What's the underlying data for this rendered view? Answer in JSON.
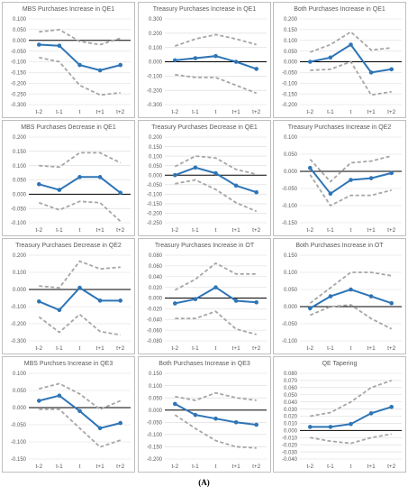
{
  "caption": "(A)",
  "colors": {
    "main": "#2E75B6",
    "band": "#A6A6A6",
    "zero": "#000000",
    "grid": "#D9D9D9",
    "frame": "#BFBFBF",
    "text": "#595959"
  },
  "chart_data": [
    {
      "type": "line",
      "title": "MBS Purchases Increase in QE1",
      "categories": [
        "t-2",
        "t-1",
        "t",
        "t+1",
        "t+2"
      ],
      "ylim": [
        -0.3,
        0.1
      ],
      "yticks": [
        "0.100",
        "0.050",
        "0.000",
        "-0.050",
        "-0.100",
        "-0.150",
        "-0.200",
        "-0.250",
        "-0.300"
      ],
      "series": [
        {
          "role": "point",
          "values": [
            -0.02,
            -0.025,
            -0.115,
            -0.14,
            -0.115
          ]
        },
        {
          "role": "upper",
          "values": [
            0.04,
            0.05,
            -0.005,
            -0.02,
            0.01
          ]
        },
        {
          "role": "lower",
          "values": [
            -0.08,
            -0.1,
            -0.21,
            -0.255,
            -0.245
          ]
        }
      ]
    },
    {
      "type": "line",
      "title": "Treasury Purchases Increase in QE1",
      "categories": [
        "t-2",
        "t-1",
        "t",
        "t+1",
        "t+2"
      ],
      "ylim": [
        -0.3,
        0.3
      ],
      "yticks": [
        "0.300",
        "0.200",
        "0.100",
        "0.000",
        "-0.100",
        "-0.200",
        "-0.300"
      ],
      "series": [
        {
          "role": "point",
          "values": [
            0.01,
            0.025,
            0.04,
            0.0,
            -0.05
          ]
        },
        {
          "role": "upper",
          "values": [
            0.11,
            0.16,
            0.19,
            0.16,
            0.12
          ]
        },
        {
          "role": "lower",
          "values": [
            -0.09,
            -0.11,
            -0.11,
            -0.165,
            -0.22
          ]
        }
      ]
    },
    {
      "type": "line",
      "title": "Both Purchases Increase in QE1",
      "categories": [
        "t-2",
        "t-1",
        "t",
        "t+1",
        "t+2"
      ],
      "ylim": [
        -0.2,
        0.2
      ],
      "yticks": [
        "0.200",
        "0.150",
        "0.100",
        "0.050",
        "0.000",
        "-0.050",
        "-0.100",
        "-0.150",
        "-0.200"
      ],
      "series": [
        {
          "role": "point",
          "values": [
            0.0,
            0.02,
            0.08,
            -0.05,
            -0.035
          ]
        },
        {
          "role": "upper",
          "values": [
            0.045,
            0.08,
            0.14,
            0.055,
            0.065
          ]
        },
        {
          "role": "lower",
          "values": [
            -0.04,
            -0.035,
            0.0,
            -0.155,
            -0.14
          ]
        }
      ]
    },
    {
      "type": "line",
      "title": "MBS Purchases Decrease in QE1",
      "categories": [
        "t-2",
        "t-1",
        "t",
        "t+1",
        "t+2"
      ],
      "ylim": [
        -0.1,
        0.2
      ],
      "yticks": [
        "0.200",
        "0.150",
        "0.100",
        "0.050",
        "0.000",
        "-0.050",
        "-0.100"
      ],
      "series": [
        {
          "role": "point",
          "values": [
            0.035,
            0.015,
            0.06,
            0.06,
            0.005
          ]
        },
        {
          "role": "upper",
          "values": [
            0.1,
            0.095,
            0.145,
            0.145,
            0.11
          ]
        },
        {
          "role": "lower",
          "values": [
            -0.03,
            -0.055,
            -0.025,
            -0.03,
            -0.095
          ]
        }
      ]
    },
    {
      "type": "line",
      "title": "Treasury Purchases Decrease in QE1",
      "categories": [
        "t-2",
        "t-1",
        "t",
        "t+1",
        "t+2"
      ],
      "ylim": [
        -0.25,
        0.2
      ],
      "yticks": [
        "0.200",
        "0.150",
        "0.100",
        "0.050",
        "0.000",
        "-0.050",
        "-0.100",
        "-0.150",
        "-0.200",
        "-0.250"
      ],
      "series": [
        {
          "role": "point",
          "values": [
            0.0,
            0.04,
            0.01,
            -0.055,
            -0.09
          ]
        },
        {
          "role": "upper",
          "values": [
            0.045,
            0.1,
            0.09,
            0.03,
            0.005
          ]
        },
        {
          "role": "lower",
          "values": [
            -0.045,
            -0.025,
            -0.075,
            -0.145,
            -0.19
          ]
        }
      ]
    },
    {
      "type": "line",
      "title": "Treasury Purchases Increase in QE2",
      "categories": [
        "t-2",
        "t-1",
        "t",
        "t+1",
        "t+2"
      ],
      "ylim": [
        -0.15,
        0.1
      ],
      "yticks": [
        "0.100",
        "0.050",
        "0.000",
        "-0.050",
        "-0.100",
        "-0.150"
      ],
      "series": [
        {
          "role": "point",
          "values": [
            0.01,
            -0.065,
            -0.025,
            -0.02,
            -0.005
          ]
        },
        {
          "role": "upper",
          "values": [
            0.035,
            -0.03,
            0.025,
            0.03,
            0.045
          ]
        },
        {
          "role": "lower",
          "values": [
            -0.01,
            -0.1,
            -0.07,
            -0.07,
            -0.055
          ]
        }
      ]
    },
    {
      "type": "line",
      "title": "Treasury Purchases Decrease in QE2",
      "categories": [
        "t-2",
        "t-1",
        "t",
        "t+1",
        "t+2"
      ],
      "ylim": [
        -0.3,
        0.2
      ],
      "yticks": [
        "0.200",
        "0.100",
        "0.000",
        "-0.100",
        "-0.200",
        "-0.300"
      ],
      "series": [
        {
          "role": "point",
          "values": [
            -0.07,
            -0.12,
            0.01,
            -0.065,
            -0.065
          ]
        },
        {
          "role": "upper",
          "values": [
            0.02,
            0.01,
            0.165,
            0.12,
            0.13
          ]
        },
        {
          "role": "lower",
          "values": [
            -0.16,
            -0.25,
            -0.145,
            -0.245,
            -0.265
          ]
        }
      ]
    },
    {
      "type": "line",
      "title": "Treasury Purchases Increase in OT",
      "categories": [
        "t-2",
        "t-1",
        "t",
        "t+1",
        "t+2"
      ],
      "ylim": [
        -0.08,
        0.08
      ],
      "yticks": [
        "0.080",
        "0.060",
        "0.040",
        "0.020",
        "0.000",
        "-0.020",
        "-0.040",
        "-0.060",
        "-0.080"
      ],
      "series": [
        {
          "role": "point",
          "values": [
            -0.01,
            -0.002,
            0.02,
            -0.005,
            -0.008
          ]
        },
        {
          "role": "upper",
          "values": [
            0.015,
            0.035,
            0.065,
            0.045,
            0.045
          ]
        },
        {
          "role": "lower",
          "values": [
            -0.038,
            -0.038,
            -0.025,
            -0.058,
            -0.068
          ]
        }
      ]
    },
    {
      "type": "line",
      "title": "Both Purchases Increase in OT",
      "categories": [
        "t-2",
        "t-1",
        "t",
        "t+1",
        "t+2"
      ],
      "ylim": [
        -0.1,
        0.15
      ],
      "yticks": [
        "0.150",
        "0.100",
        "0.050",
        "0.000",
        "-0.050",
        "-0.100"
      ],
      "series": [
        {
          "role": "point",
          "values": [
            -0.005,
            0.03,
            0.05,
            0.03,
            0.01
          ]
        },
        {
          "role": "upper",
          "values": [
            0.01,
            0.055,
            0.1,
            0.1,
            0.09
          ]
        },
        {
          "role": "lower",
          "values": [
            -0.025,
            0.0,
            0.005,
            -0.035,
            -0.065
          ]
        }
      ]
    },
    {
      "type": "line",
      "title": "MBS Purchses Increase in QE3",
      "categories": [
        "t-2",
        "t-1",
        "t",
        "t+1",
        "t+2"
      ],
      "ylim": [
        -0.15,
        0.1
      ],
      "yticks": [
        "0.100",
        "0.050",
        "0.000",
        "-0.050",
        "-0.100",
        "-0.150"
      ],
      "series": [
        {
          "role": "point",
          "values": [
            0.02,
            0.035,
            -0.01,
            -0.06,
            -0.045
          ]
        },
        {
          "role": "upper",
          "values": [
            0.055,
            0.07,
            0.04,
            -0.005,
            0.02
          ]
        },
        {
          "role": "lower",
          "values": [
            -0.005,
            -0.005,
            -0.06,
            -0.115,
            -0.095
          ]
        }
      ]
    },
    {
      "type": "line",
      "title": "Both Purchases Increase in QE3",
      "categories": [
        "t-2",
        "t-1",
        "t",
        "t+1",
        "t+2"
      ],
      "ylim": [
        -0.2,
        0.15
      ],
      "yticks": [
        "0.150",
        "0.100",
        "0.050",
        "0.000",
        "-0.050",
        "-0.100",
        "-0.150",
        "-0.200"
      ],
      "series": [
        {
          "role": "point",
          "values": [
            0.025,
            -0.02,
            -0.035,
            -0.05,
            -0.06
          ]
        },
        {
          "role": "upper",
          "values": [
            0.055,
            0.04,
            0.07,
            0.05,
            0.04
          ]
        },
        {
          "role": "lower",
          "values": [
            -0.02,
            -0.075,
            -0.125,
            -0.15,
            -0.155
          ]
        }
      ]
    },
    {
      "type": "line",
      "title": "QE Tapering",
      "categories": [
        "t-2",
        "t-1",
        "t",
        "t+1",
        "t+2"
      ],
      "ylim": [
        -0.04,
        0.08
      ],
      "yticks": [
        "0.080",
        "0.070",
        "0.060",
        "0.050",
        "0.040",
        "0.030",
        "0.020",
        "0.010",
        "0.000",
        "-0.010",
        "-0.020",
        "-0.030",
        "-0.040"
      ],
      "series": [
        {
          "role": "point",
          "values": [
            0.005,
            0.005,
            0.009,
            0.024,
            0.033
          ]
        },
        {
          "role": "upper",
          "values": [
            0.02,
            0.025,
            0.04,
            0.06,
            0.07
          ]
        },
        {
          "role": "lower",
          "values": [
            -0.01,
            -0.015,
            -0.018,
            -0.01,
            -0.005
          ]
        }
      ]
    }
  ]
}
